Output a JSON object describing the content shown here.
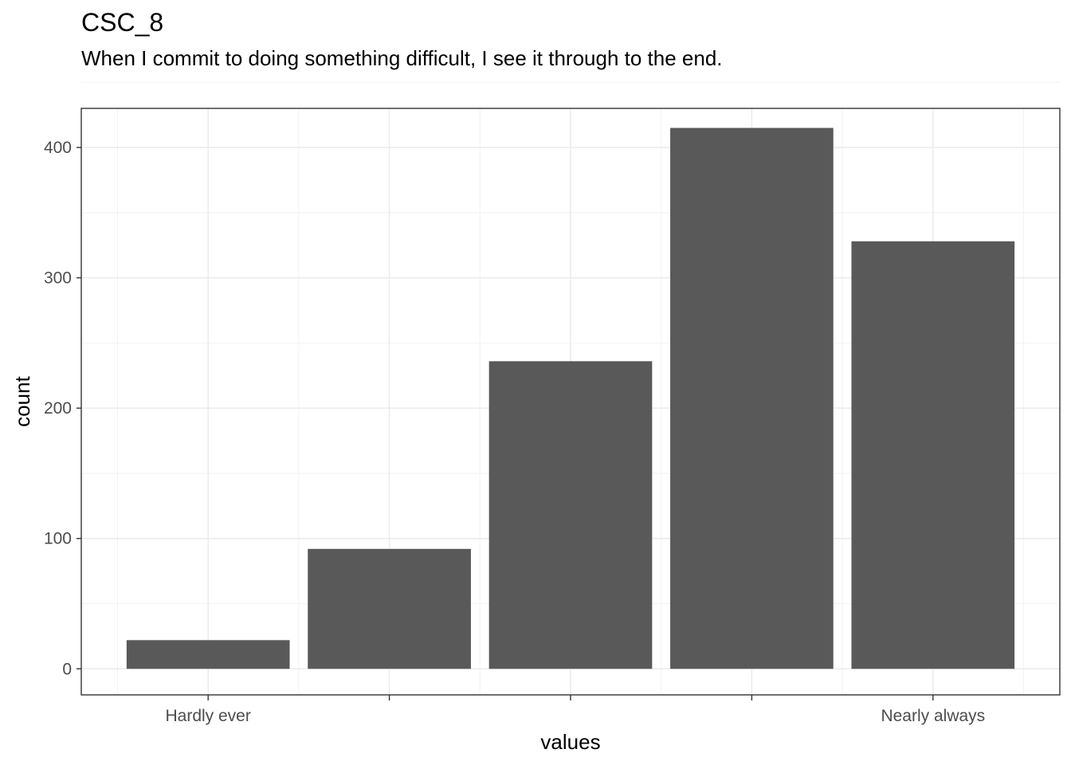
{
  "chart_data": {
    "type": "bar",
    "title": "CSC_8",
    "subtitle": "When I commit to doing something difficult, I see it through to the end.",
    "xlabel": "values",
    "ylabel": "count",
    "categories": [
      "Hardly ever",
      "",
      "",
      "",
      "Nearly always"
    ],
    "values": [
      22,
      92,
      236,
      415,
      328
    ],
    "ylim": [
      -20,
      430
    ],
    "yticks": [
      0,
      100,
      200,
      300,
      400
    ],
    "bar_color": "#595959",
    "grid": true
  }
}
